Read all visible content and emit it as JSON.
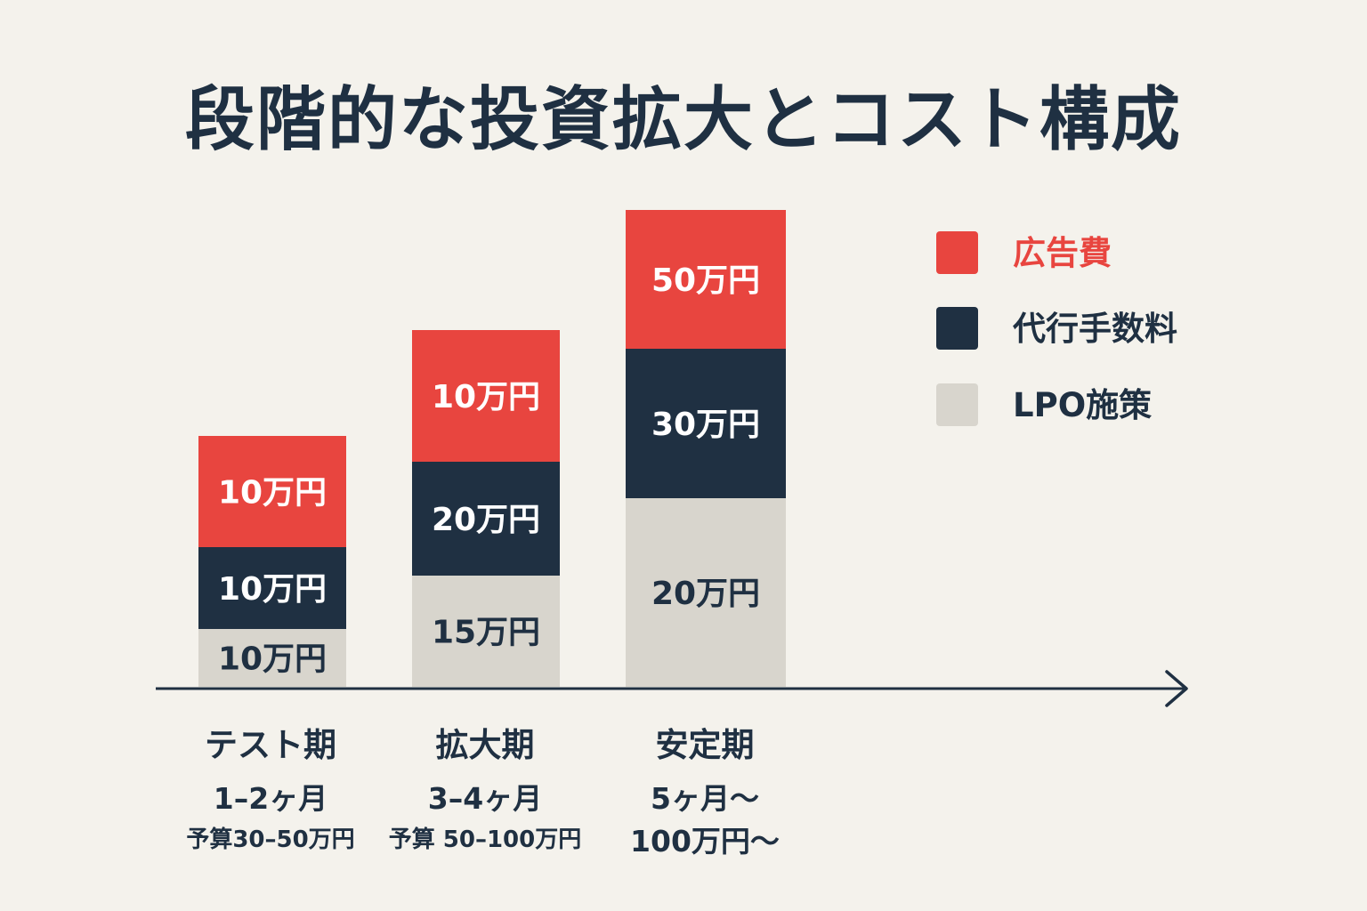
{
  "title": "段階的な投資拡大とコスト構成",
  "colors": {
    "ad": "#e8453f",
    "agency": "#1f3042",
    "lpo": "#d8d5cd",
    "text_dark": "#1f3042",
    "text_light": "#ffffff",
    "legend_ad_text": "#e8453f"
  },
  "chart_data": {
    "type": "bar",
    "stacked": true,
    "categories": [
      "テスト期",
      "拡大期",
      "安定期"
    ],
    "periods": [
      "1–2ヶ月",
      "3–4ヶ月",
      "5ヶ月〜"
    ],
    "budgets": [
      "予算30–50万円",
      "予算 50–100万円",
      "100万円〜"
    ],
    "unit": "万円",
    "series": [
      {
        "name": "LPO施策",
        "key": "lpo",
        "values": [
          10,
          15,
          20
        ],
        "labels": [
          "10万円",
          "15万円",
          "20万円"
        ]
      },
      {
        "name": "代行手数料",
        "key": "agency",
        "values": [
          10,
          20,
          30
        ],
        "labels": [
          "10万円",
          "20万円",
          "30万円"
        ]
      },
      {
        "name": "広告費",
        "key": "ad",
        "values": [
          10,
          10,
          50
        ],
        "labels": [
          "10万円",
          "10万円",
          "50万円"
        ]
      }
    ],
    "legend_order": [
      "ad",
      "agency",
      "lpo"
    ],
    "legend_placement": "right",
    "grid": false,
    "axis": "x-arrow"
  }
}
